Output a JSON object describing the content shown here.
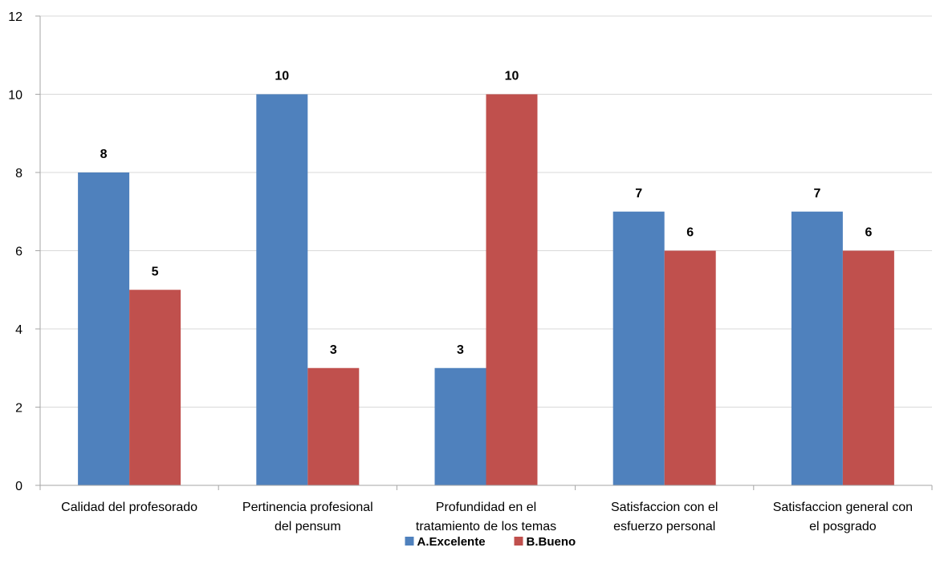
{
  "chart_data": {
    "type": "bar",
    "categories": [
      [
        "Calidad del profesorado"
      ],
      [
        "Pertinencia profesional",
        "del pensum"
      ],
      [
        "Profundidad en el",
        "tratamiento de los temas"
      ],
      [
        "Satisfaccion con el",
        "esfuerzo personal"
      ],
      [
        "Satisfaccion general con",
        "el posgrado"
      ]
    ],
    "series": [
      {
        "name": "A.Excelente",
        "color": "#4F81BD",
        "values": [
          8,
          10,
          3,
          7,
          7
        ]
      },
      {
        "name": "B.Bueno",
        "color": "#C0504D",
        "values": [
          5,
          3,
          10,
          6,
          6
        ]
      }
    ],
    "ylim": [
      0,
      12
    ],
    "yticks": [
      "0",
      "2",
      "4",
      "6",
      "8",
      "10",
      "12"
    ],
    "grid": true,
    "legend_position": "bottom",
    "data_labels": true
  }
}
